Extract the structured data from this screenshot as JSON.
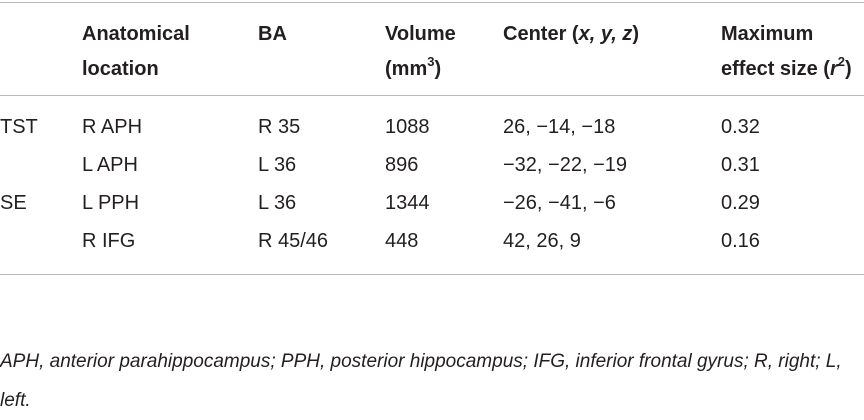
{
  "table": {
    "header": [
      [
        "Anatomical location"
      ],
      [
        "BA"
      ],
      [
        "Volume (mm",
        "3",
        ")"
      ],
      [
        "Center (",
        "x, y, z",
        ")"
      ],
      [
        "Maximum effect size (",
        "r",
        "2",
        ")"
      ]
    ],
    "rows": [
      [
        "TST",
        "R APH",
        "R 35",
        "1088",
        "26, −14, −18",
        "0.32"
      ],
      [
        null,
        "L APH",
        "L 36",
        "896",
        "−32, −22, −19",
        "0.31"
      ],
      [
        "SE",
        "L PPH",
        "L 36",
        "1344",
        "−26, −41, −6",
        "0.29"
      ],
      [
        null,
        "R IFG",
        "R 45/46",
        "448",
        "42, 26, 9",
        "0.16"
      ]
    ]
  },
  "footnote": "APH, anterior parahippocampus; PPH, posterior hippocampus; IFG, inferior frontal gyrus; R, right; L, left."
}
